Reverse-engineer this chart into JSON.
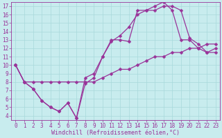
{
  "background_color": "#c8ecee",
  "line_color": "#993399",
  "marker_color": "#993399",
  "xlabel": "Windchill (Refroidissement éolien,°C)",
  "ylabel_ticks": [
    4,
    5,
    6,
    7,
    8,
    9,
    10,
    11,
    12,
    13,
    14,
    15,
    16,
    17
  ],
  "xlabel_ticks": [
    0,
    1,
    2,
    3,
    4,
    5,
    6,
    7,
    8,
    9,
    10,
    11,
    12,
    13,
    14,
    15,
    16,
    17,
    18,
    19,
    20,
    21,
    22,
    23
  ],
  "xlim": [
    -0.5,
    23.5
  ],
  "ylim": [
    3.5,
    17.5
  ],
  "series1_x": [
    0,
    1,
    2,
    3,
    4,
    5,
    6,
    7,
    8,
    9,
    10,
    11,
    12,
    13,
    14,
    15,
    16,
    17,
    18,
    19,
    20,
    21,
    22,
    23
  ],
  "series1_y": [
    10,
    8,
    7.2,
    5.8,
    5.0,
    4.5,
    5.5,
    3.7,
    7.8,
    8.5,
    11,
    13,
    13,
    12.8,
    16.5,
    16.5,
    17.0,
    17.5,
    16.5,
    13,
    13,
    12,
    11.5,
    12.0
  ],
  "series2_x": [
    0,
    1,
    2,
    3,
    4,
    5,
    6,
    7,
    8,
    9,
    10,
    11,
    12,
    13,
    14,
    15,
    16,
    17,
    18,
    19,
    20,
    21,
    22,
    23
  ],
  "series2_y": [
    10.0,
    8.0,
    8.0,
    8.0,
    8.0,
    8.0,
    8.0,
    8.0,
    8.0,
    8.0,
    8.5,
    9.0,
    9.5,
    9.5,
    10.0,
    10.5,
    11.0,
    11.0,
    11.5,
    11.5,
    12.0,
    12.0,
    12.5,
    12.5
  ],
  "series3_x": [
    0,
    1,
    2,
    3,
    4,
    5,
    6,
    7,
    8,
    9,
    10,
    11,
    12,
    13,
    14,
    15,
    16,
    17,
    18,
    19,
    20,
    21,
    22,
    23
  ],
  "series3_y": [
    10.0,
    8.0,
    7.2,
    5.8,
    5.0,
    4.5,
    5.5,
    3.7,
    8.5,
    9.0,
    11,
    12.8,
    13.5,
    14.5,
    16.0,
    16.5,
    16.5,
    17.0,
    17.0,
    16.5,
    13.2,
    12.5,
    11.5,
    11.5
  ],
  "font_family": "monospace",
  "tick_fontsize": 5.5,
  "label_fontsize": 6.0,
  "grid_color": "#a8d8db",
  "grid_linewidth": 0.5,
  "line_linewidth": 0.9,
  "marker_size": 2.5
}
